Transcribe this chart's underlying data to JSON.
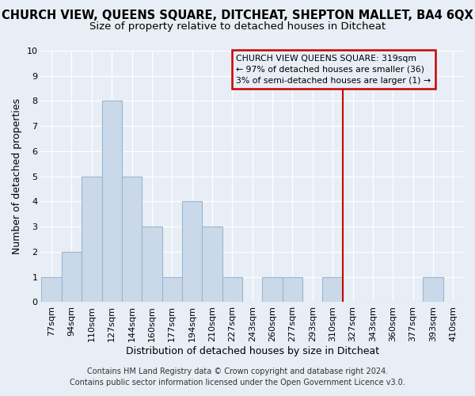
{
  "title": "CHURCH VIEW, QUEENS SQUARE, DITCHEAT, SHEPTON MALLET, BA4 6QX",
  "subtitle": "Size of property relative to detached houses in Ditcheat",
  "xlabel": "Distribution of detached houses by size in Ditcheat",
  "ylabel": "Number of detached properties",
  "bar_labels": [
    "77sqm",
    "94sqm",
    "110sqm",
    "127sqm",
    "144sqm",
    "160sqm",
    "177sqm",
    "194sqm",
    "210sqm",
    "227sqm",
    "243sqm",
    "260sqm",
    "277sqm",
    "293sqm",
    "310sqm",
    "327sqm",
    "343sqm",
    "360sqm",
    "377sqm",
    "393sqm",
    "410sqm"
  ],
  "bar_heights": [
    1,
    2,
    5,
    8,
    5,
    3,
    1,
    4,
    3,
    1,
    0,
    1,
    1,
    0,
    1,
    0,
    0,
    0,
    0,
    1,
    0
  ],
  "bar_color": "#c9d9ea",
  "bar_edge_color": "#9bb5cc",
  "bg_color": "#e8eef5",
  "grid_color": "#ffffff",
  "red_line_index": 14.5,
  "red_line_color": "#cc0000",
  "annotation_text": "CHURCH VIEW QUEENS SQUARE: 319sqm\n← 97% of detached houses are smaller (36)\n3% of semi-detached houses are larger (1) →",
  "annotation_box_facecolor": "#e8eef5",
  "annotation_box_edgecolor": "#cc0000",
  "ylim": [
    0,
    10
  ],
  "yticks": [
    0,
    1,
    2,
    3,
    4,
    5,
    6,
    7,
    8,
    9,
    10
  ],
  "footer_line1": "Contains HM Land Registry data © Crown copyright and database right 2024.",
  "footer_line2": "Contains public sector information licensed under the Open Government Licence v3.0.",
  "title_fontsize": 10.5,
  "subtitle_fontsize": 9.5,
  "xlabel_fontsize": 9,
  "ylabel_fontsize": 9,
  "tick_fontsize": 8,
  "annotation_fontsize": 7.8,
  "footer_fontsize": 7
}
